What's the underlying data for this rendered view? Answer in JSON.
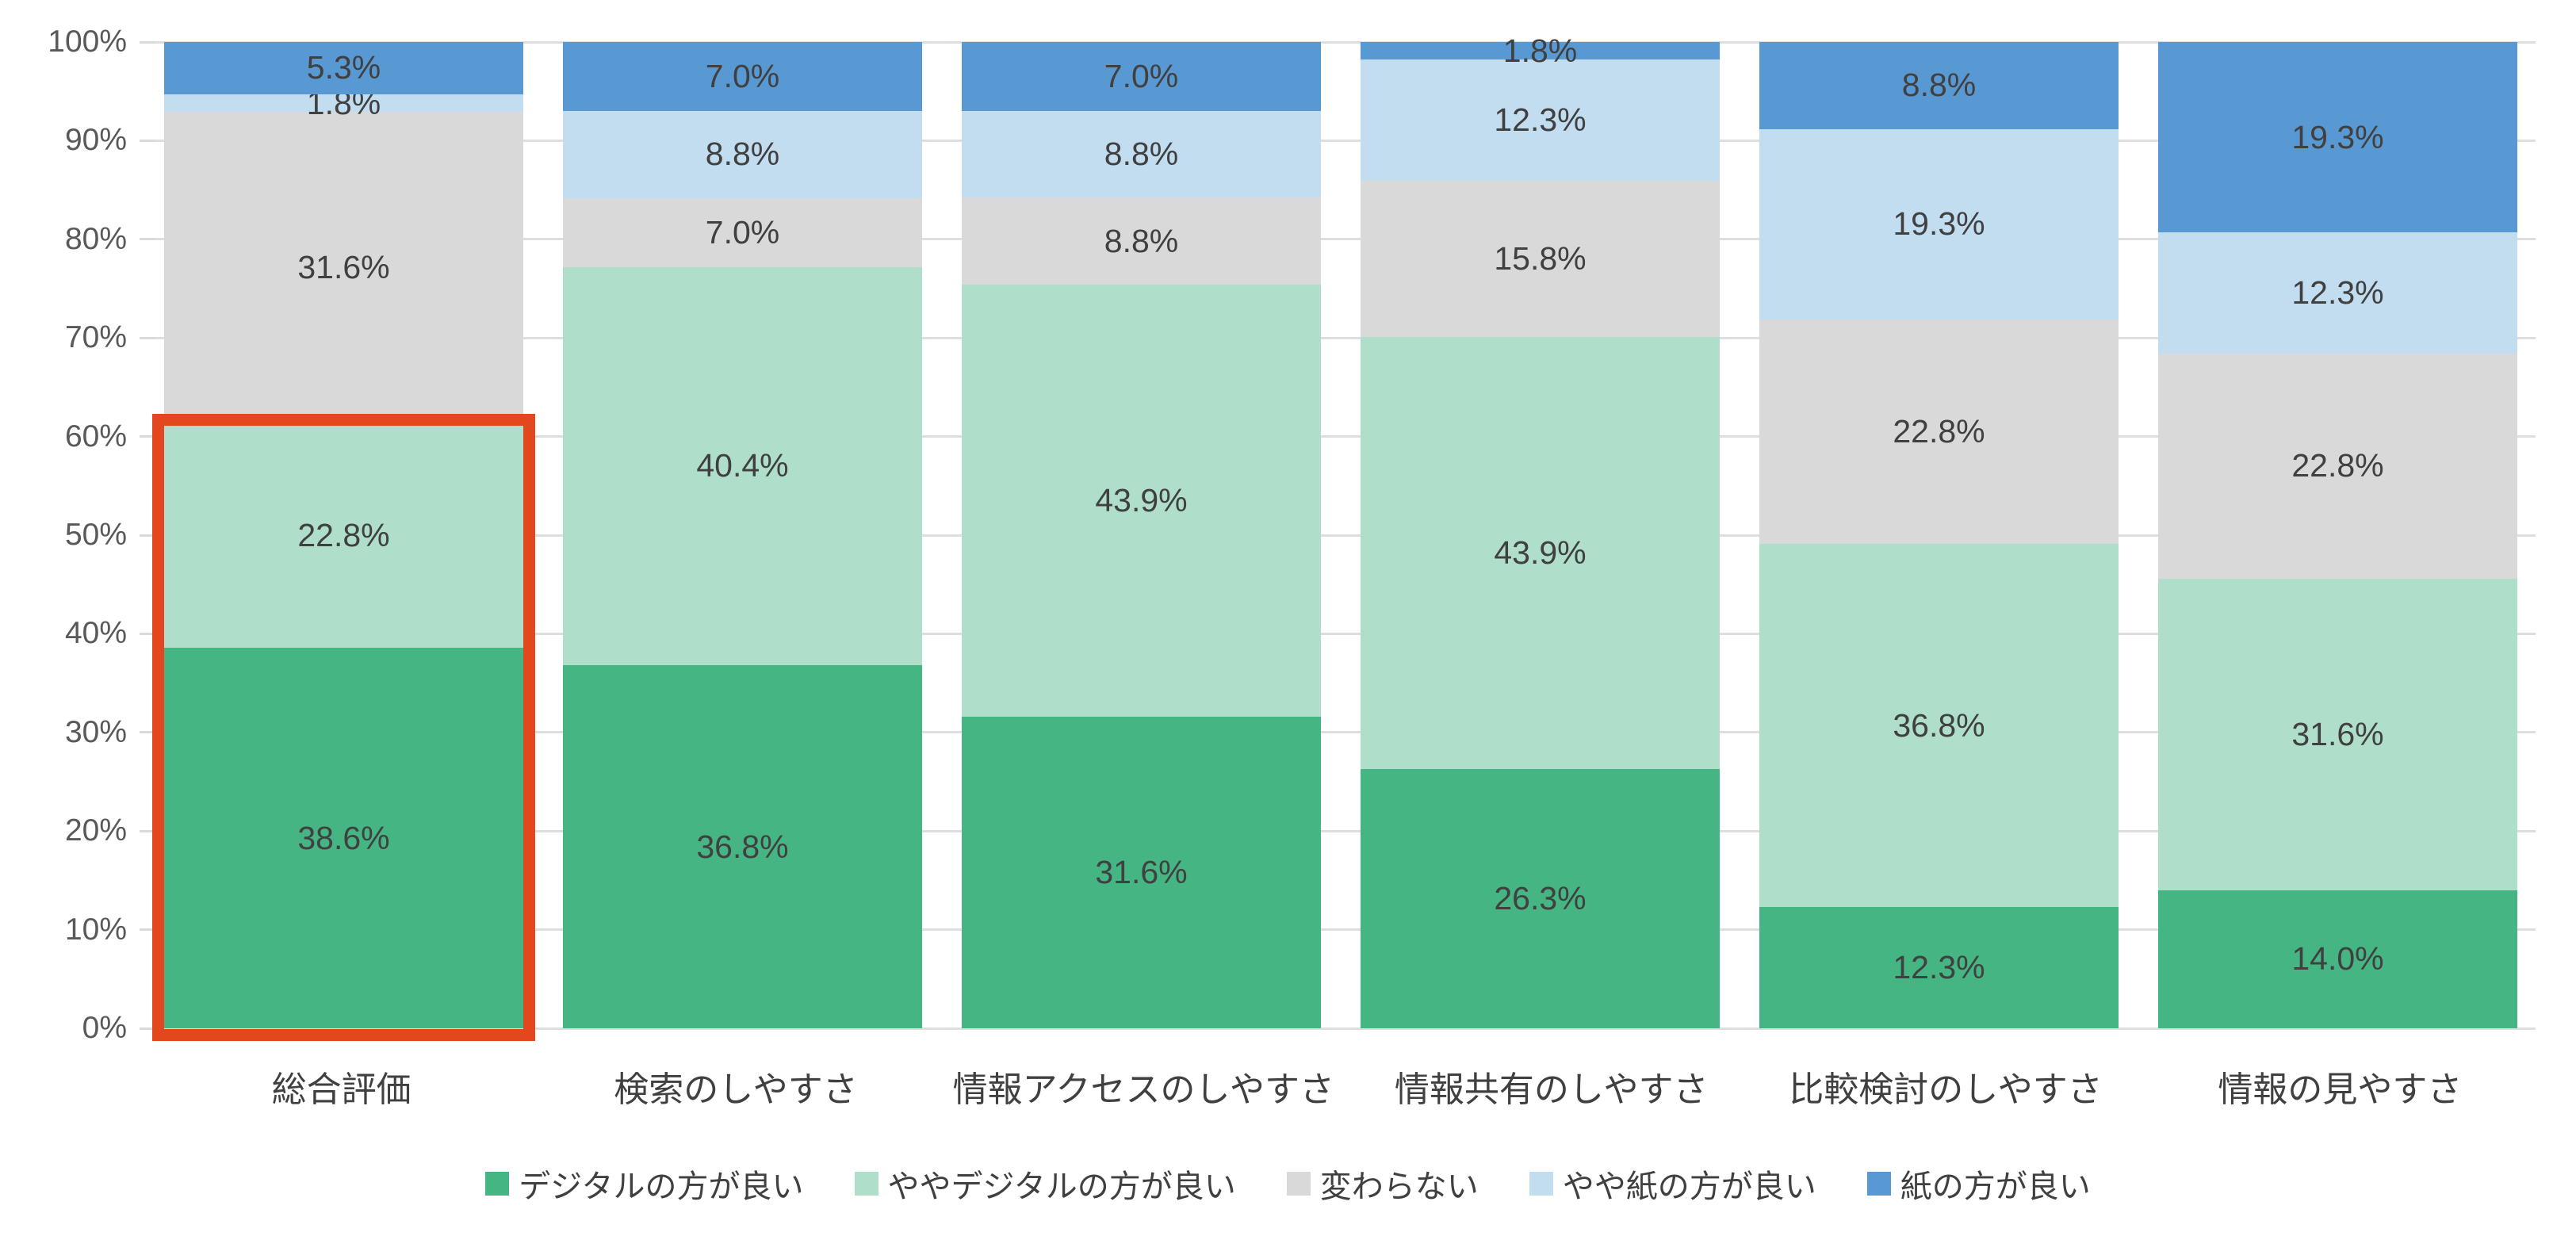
{
  "page": {
    "background": "#FFFFFF"
  },
  "chart_data": {
    "type": "bar",
    "stacked": "percent",
    "orientation": "vertical",
    "title": "",
    "categories": [
      "総合評価",
      "検索のしやすさ",
      "情報アクセスのしやすさ",
      "情報共有のしやすさ",
      "比較検討のしやすさ",
      "情報の見やすさ"
    ],
    "series": [
      {
        "name": "デジタルの方が良い",
        "color": "#45B583",
        "values": [
          38.6,
          36.8,
          31.6,
          26.3,
          12.3,
          14.0
        ]
      },
      {
        "name": "ややデジタルの方が良い",
        "color": "#AFDFCB",
        "values": [
          22.8,
          40.4,
          43.9,
          43.9,
          36.8,
          31.6
        ]
      },
      {
        "name": "変わらない",
        "color": "#D9D9D9",
        "values": [
          31.6,
          7.0,
          8.8,
          15.8,
          22.8,
          22.8
        ]
      },
      {
        "name": "やや紙の方が良い",
        "color": "#C2DCF0",
        "values": [
          1.8,
          8.8,
          8.8,
          12.3,
          19.3,
          12.3
        ]
      },
      {
        "name": "紙の方が良い",
        "color": "#5999D3",
        "values": [
          5.3,
          7.0,
          7.0,
          1.8,
          8.8,
          19.3
        ]
      }
    ],
    "data_label_suffix": "%",
    "data_label_decimals": 1,
    "y_axis": {
      "min": 0,
      "max": 100,
      "tick_step": 10,
      "tick_labels": [
        "0%",
        "10%",
        "20%",
        "30%",
        "40%",
        "50%",
        "60%",
        "70%",
        "80%",
        "90%",
        "100%"
      ]
    },
    "grid": true,
    "legend_position": "bottom",
    "highlight_box": {
      "category_index": 0,
      "from_series": 0,
      "to_series": 1,
      "color": "#E2471D",
      "border_px": 15
    }
  },
  "colors": {
    "gridline": "#DEDEDE",
    "tick": "#D9D9D9",
    "axis_text": "#595959",
    "label_text": "#404040"
  }
}
